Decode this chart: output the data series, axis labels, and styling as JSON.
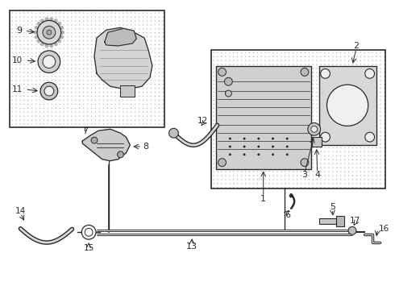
{
  "bg": "#ffffff",
  "lc": "#2a2a2a",
  "box_fill": "#e0e0e0",
  "part_fill": "#d0d0d0",
  "light_fill": "#e8e8e8",
  "fig_w": 4.9,
  "fig_h": 3.6,
  "dpi": 100
}
